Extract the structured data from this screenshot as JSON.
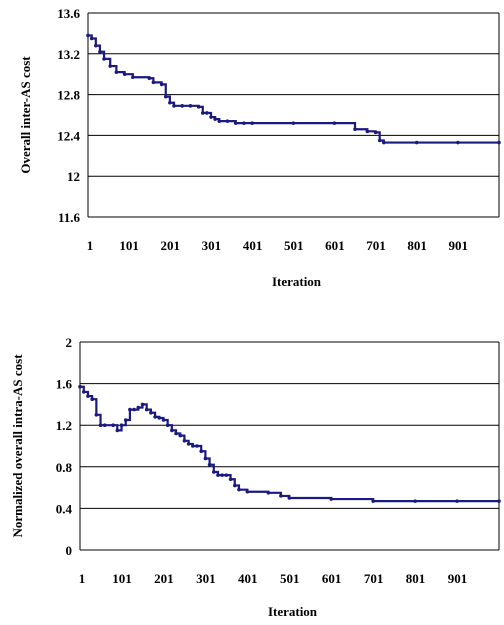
{
  "chart_data": [
    {
      "type": "line",
      "title": "",
      "xlabel": "Iteration",
      "ylabel": "Overall inter-AS cost",
      "xlim": [
        1,
        1000
      ],
      "ylim": [
        11.6,
        13.6
      ],
      "yticks": [
        "11.6",
        "12",
        "12.4",
        "12.8",
        "13.2",
        "13.6"
      ],
      "xticks": [
        "1",
        "101",
        "201",
        "301",
        "401",
        "501",
        "601",
        "701",
        "801",
        "901"
      ],
      "grid": true,
      "color": "#1a1a80",
      "series": [
        {
          "x": [
            1,
            10,
            20,
            30,
            40,
            55,
            70,
            90,
            110,
            150,
            160,
            180,
            190,
            200,
            210,
            230,
            250,
            270,
            280,
            290,
            300,
            310,
            320,
            340,
            360,
            380,
            400,
            500,
            600,
            650,
            680,
            700,
            710,
            720,
            800,
            900,
            1000
          ],
          "y": [
            13.38,
            13.35,
            13.28,
            13.22,
            13.15,
            13.08,
            13.02,
            13.0,
            12.97,
            12.96,
            12.92,
            12.9,
            12.78,
            12.72,
            12.69,
            12.69,
            12.69,
            12.68,
            12.62,
            12.62,
            12.58,
            12.56,
            12.54,
            12.54,
            12.52,
            12.52,
            12.52,
            12.52,
            12.52,
            12.46,
            12.44,
            12.43,
            12.35,
            12.33,
            12.33,
            12.33,
            12.33
          ]
        }
      ]
    },
    {
      "type": "line",
      "title": "",
      "xlabel": "Iteration",
      "ylabel": "Normalized overall intra-AS cost",
      "xlim": [
        1,
        1000
      ],
      "ylim": [
        0,
        2
      ],
      "yticks": [
        "0",
        "0.4",
        "0.8",
        "1.2",
        "1.6",
        "2"
      ],
      "xticks": [
        "1",
        "101",
        "201",
        "301",
        "401",
        "501",
        "601",
        "701",
        "801",
        "901"
      ],
      "grid": true,
      "color": "#1a1a80",
      "series": [
        {
          "x": [
            1,
            10,
            20,
            30,
            40,
            50,
            60,
            80,
            90,
            100,
            110,
            120,
            130,
            140,
            150,
            160,
            170,
            180,
            190,
            200,
            210,
            220,
            230,
            240,
            250,
            260,
            270,
            280,
            290,
            300,
            310,
            320,
            330,
            340,
            350,
            360,
            370,
            380,
            400,
            450,
            480,
            500,
            600,
            700,
            800,
            900,
            1000
          ],
          "y": [
            1.57,
            1.52,
            1.48,
            1.45,
            1.3,
            1.2,
            1.2,
            1.2,
            1.15,
            1.2,
            1.25,
            1.35,
            1.35,
            1.37,
            1.4,
            1.35,
            1.32,
            1.28,
            1.27,
            1.25,
            1.2,
            1.15,
            1.12,
            1.1,
            1.05,
            1.02,
            1.0,
            1.0,
            0.95,
            0.88,
            0.82,
            0.75,
            0.72,
            0.72,
            0.72,
            0.68,
            0.62,
            0.58,
            0.56,
            0.55,
            0.52,
            0.5,
            0.49,
            0.47,
            0.47,
            0.47,
            0.47
          ]
        }
      ]
    }
  ]
}
